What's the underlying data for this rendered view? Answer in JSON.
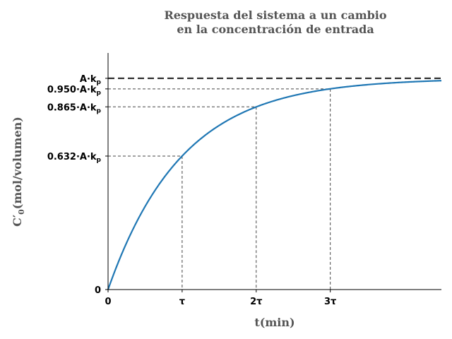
{
  "chart_data": {
    "type": "line",
    "title_line1": "Respuesta del sistema a un cambio",
    "title_line2": "en la concentración de entrada",
    "xlabel": "t(min)",
    "ylabel_main": "C′",
    "ylabel_sub": "0",
    "ylabel_rest": "(mol/volumen)",
    "x_unit": "tau",
    "xlim": [
      0,
      4.5
    ],
    "ylim": [
      0,
      1.12
    ],
    "x_ticks": [
      {
        "value": 0,
        "label": "0"
      },
      {
        "value": 1,
        "label": "τ"
      },
      {
        "value": 2,
        "label": "2τ"
      },
      {
        "value": 3,
        "label": "3τ"
      }
    ],
    "y_ticks": [
      {
        "value": 0,
        "prefix": "0",
        "sub": ""
      },
      {
        "value": 0.632,
        "prefix": "0.632·A·k",
        "sub": "p"
      },
      {
        "value": 0.865,
        "prefix": "0.865·A·k",
        "sub": "p"
      },
      {
        "value": 0.95,
        "prefix": "0.950·A·k",
        "sub": "p"
      },
      {
        "value": 1.0,
        "prefix": "A·k",
        "sub": "p"
      }
    ],
    "series": [
      {
        "function": "1 - exp(-t/tau)",
        "color": "#1f77b4"
      }
    ],
    "reference_points": [
      {
        "x": 1,
        "y": 0.632
      },
      {
        "x": 2,
        "y": 0.865
      },
      {
        "x": 3,
        "y": 0.95
      }
    ],
    "asymptote": {
      "y": 1.0,
      "color": "#333333"
    },
    "grid": false
  }
}
